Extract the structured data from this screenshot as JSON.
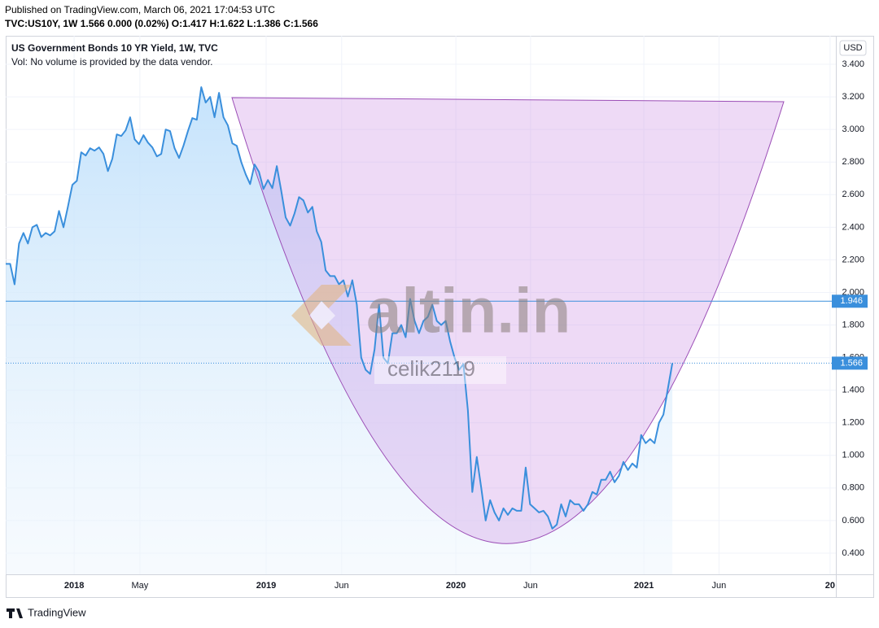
{
  "header": {
    "published": "Published on TradingView.com, March 06, 2021 17:04:53 UTC",
    "symbol_line": "TVC:US10Y, 1W  1.566 0.000 (0.02%) O:1.417 H:1.622 L:1.386 C:1.566"
  },
  "chart_data": {
    "type": "line",
    "title": "US Government Bonds 10 YR Yield, 1W, TVC",
    "subtitle": "Vol: No volume is provided by the data vendor.",
    "currency": "USD",
    "color": "#3a8fdc",
    "grid": true,
    "series": [
      {
        "name": "US10Y",
        "color": "#3a8fdc",
        "values": [
          2.175,
          2.175,
          2.05,
          2.3,
          2.365,
          2.3,
          2.4,
          2.415,
          2.34,
          2.365,
          2.35,
          2.375,
          2.5,
          2.4,
          2.525,
          2.66,
          2.685,
          2.86,
          2.84,
          2.885,
          2.87,
          2.89,
          2.85,
          2.745,
          2.82,
          2.97,
          2.96,
          2.995,
          3.075,
          2.94,
          2.91,
          2.965,
          2.92,
          2.89,
          2.835,
          2.85,
          3.0,
          2.99,
          2.885,
          2.825,
          2.9,
          2.99,
          3.07,
          3.06,
          3.26,
          3.165,
          3.2,
          3.075,
          3.225,
          3.075,
          3.025,
          2.915,
          2.9,
          2.8,
          2.725,
          2.665,
          2.785,
          2.74,
          2.635,
          2.69,
          2.64,
          2.775,
          2.625,
          2.46,
          2.41,
          2.485,
          2.585,
          2.565,
          2.49,
          2.525,
          2.375,
          2.31,
          2.135,
          2.1,
          2.1,
          2.05,
          2.075,
          1.975,
          2.075,
          1.925,
          1.6,
          1.525,
          1.5,
          1.65,
          1.925,
          1.6,
          1.565,
          1.75,
          1.75,
          1.8,
          1.725,
          1.96,
          1.825,
          1.75,
          1.825,
          1.85,
          1.925,
          1.825,
          1.8,
          1.825,
          1.7,
          1.6,
          1.525,
          1.56,
          1.275,
          0.775,
          0.99,
          0.8,
          0.6,
          0.725,
          0.65,
          0.6,
          0.675,
          0.635,
          0.675,
          0.66,
          0.66,
          0.925,
          0.7,
          0.675,
          0.65,
          0.66,
          0.625,
          0.55,
          0.575,
          0.7,
          0.625,
          0.725,
          0.7,
          0.7,
          0.66,
          0.7,
          0.775,
          0.76,
          0.85,
          0.85,
          0.9,
          0.835,
          0.875,
          0.96,
          0.91,
          0.95,
          0.925,
          1.125,
          1.075,
          1.1,
          1.075,
          1.2,
          1.25,
          1.41,
          1.566
        ]
      }
    ],
    "xlim": [
      0,
      186.8
    ],
    "xticks": [
      {
        "value": 15.4,
        "label": "2018"
      },
      {
        "value": 30.2,
        "label": "May"
      },
      {
        "value": 58.6,
        "label": "2019"
      },
      {
        "value": 75.6,
        "label": "Jun"
      },
      {
        "value": 101.3,
        "label": "2020"
      },
      {
        "value": 118.1,
        "label": "Jun"
      },
      {
        "value": 143.6,
        "label": "2021"
      },
      {
        "value": 160.5,
        "label": "Jun"
      },
      {
        "value": 185.5,
        "label": "20"
      }
    ],
    "ylim": [
      0.27,
      3.575
    ],
    "yticks": [
      {
        "value": 0.4,
        "label": "0.400"
      },
      {
        "value": 0.6,
        "label": "0.600"
      },
      {
        "value": 0.8,
        "label": "0.800"
      },
      {
        "value": 1.0,
        "label": "1.000"
      },
      {
        "value": 1.2,
        "label": "1.200"
      },
      {
        "value": 1.4,
        "label": "1.400"
      },
      {
        "value": 1.6,
        "label": "1.600"
      },
      {
        "value": 1.8,
        "label": "1.800"
      },
      {
        "value": 2.0,
        "label": "2.000"
      },
      {
        "value": 2.2,
        "label": "2.200"
      },
      {
        "value": 2.4,
        "label": "2.400"
      },
      {
        "value": 2.6,
        "label": "2.600"
      },
      {
        "value": 2.8,
        "label": "2.800"
      },
      {
        "value": 3.0,
        "label": "3.000"
      },
      {
        "value": 3.2,
        "label": "3.200"
      },
      {
        "value": 3.4,
        "label": "3.400"
      }
    ],
    "price_lines": [
      {
        "value": 1.946,
        "style": "solid"
      },
      {
        "value": 1.566,
        "style": "dotted"
      }
    ]
  },
  "watermark": {
    "site": "altin.in",
    "author": "celik2119"
  },
  "footer": {
    "brand": "TradingView"
  }
}
